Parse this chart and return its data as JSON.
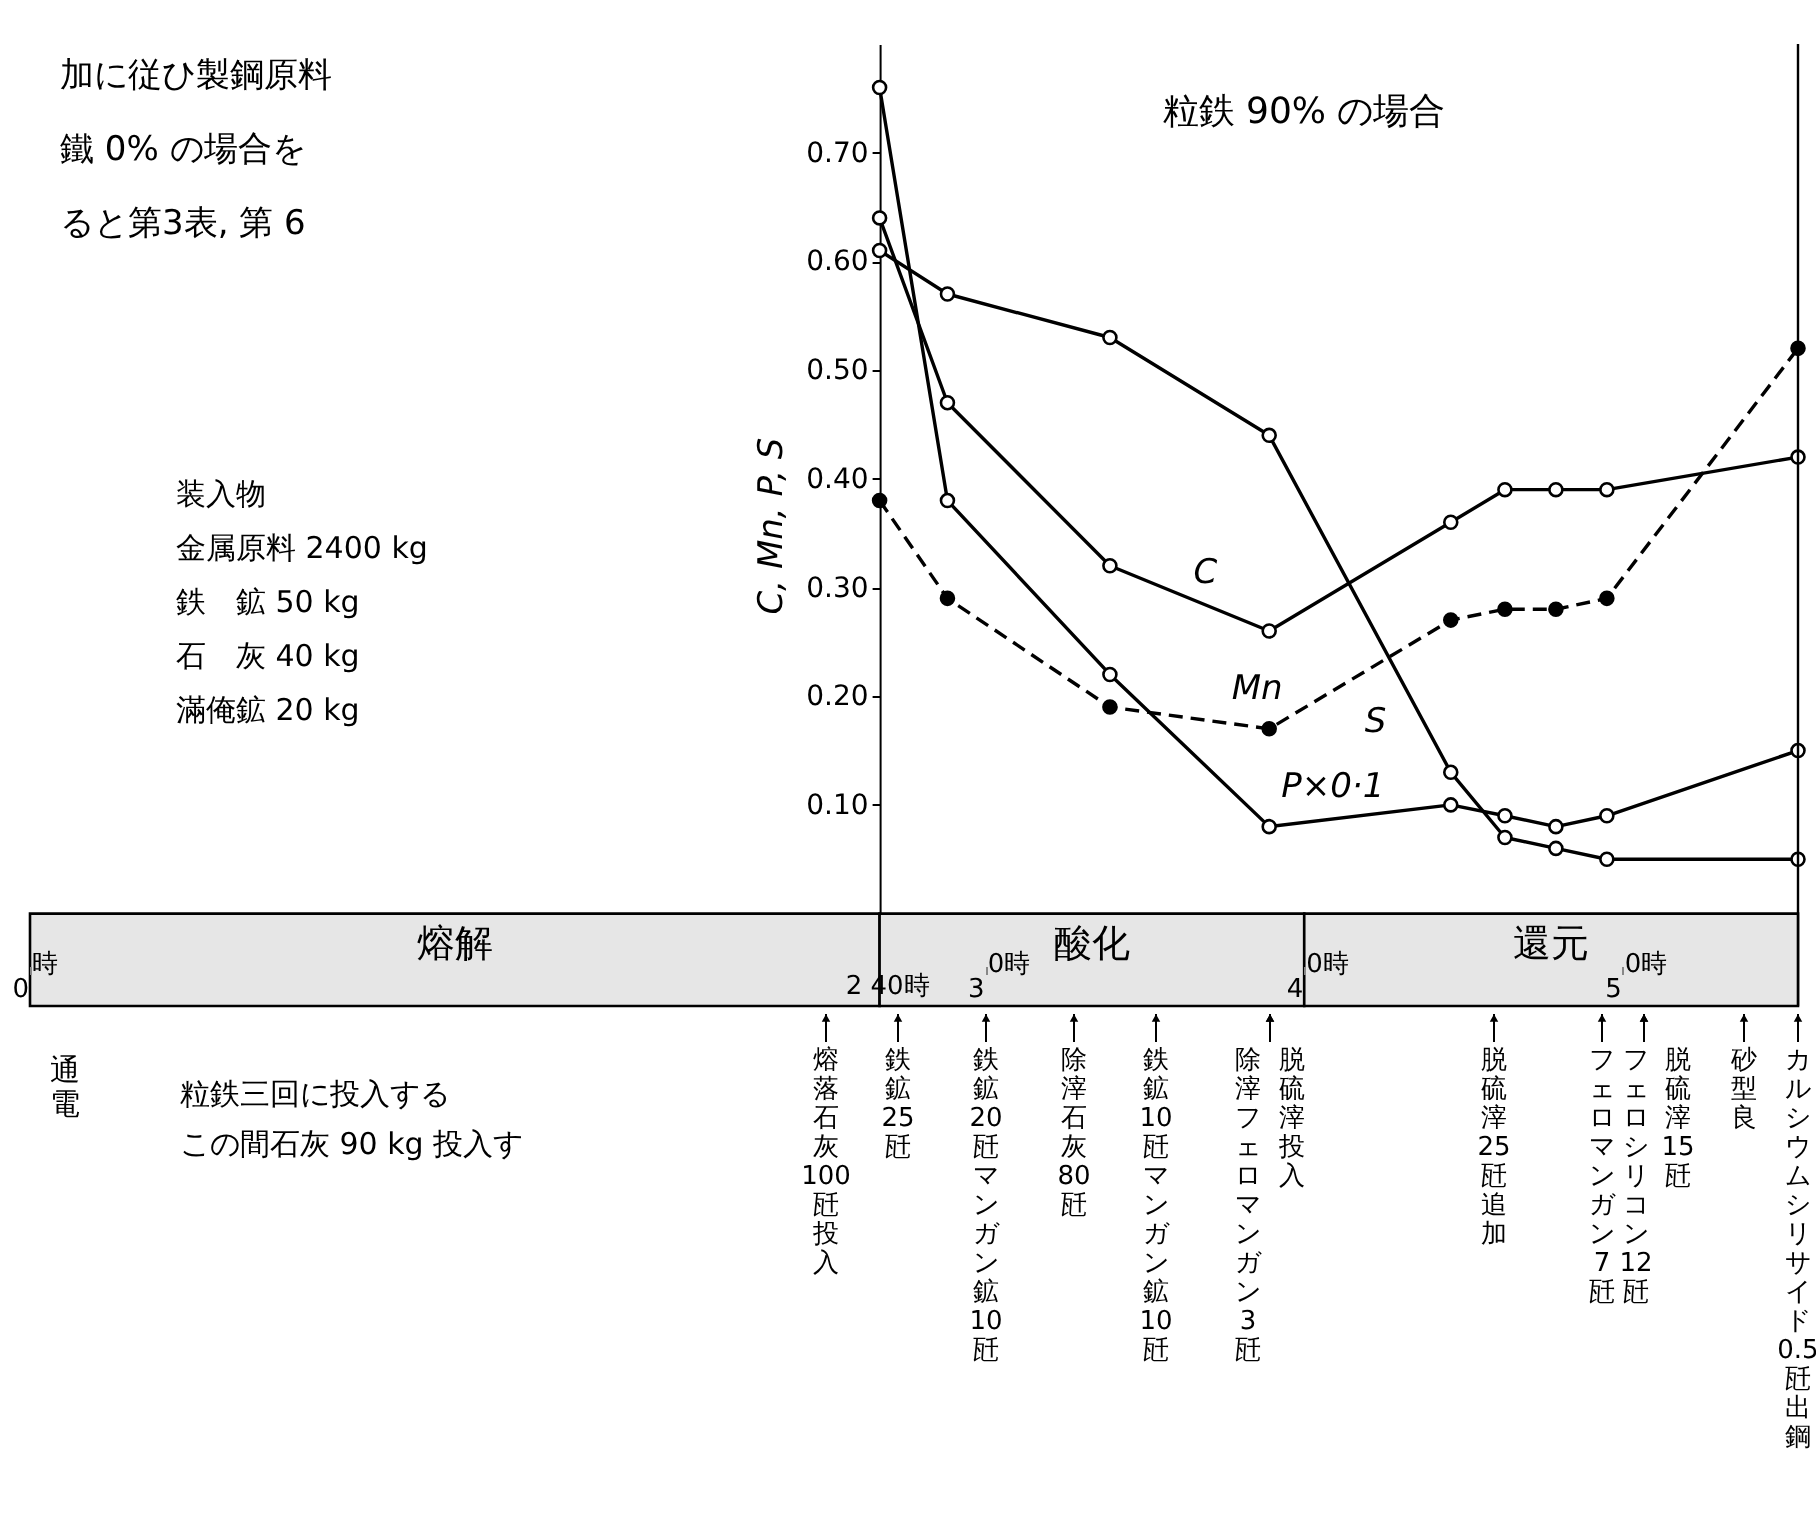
{
  "chart_data": {
    "type": "line",
    "title": "粒鉄 90% の場合",
    "ylabel": "C, Mn, P, S",
    "xlim": [
      0,
      5.55
    ],
    "xticks": [
      0,
      3,
      4,
      5
    ],
    "ylim": [
      -0.085,
      0.8
    ],
    "yticks": [
      {
        "value": 0.1,
        "label": "0.10"
      },
      {
        "value": 0.2,
        "label": "0.20"
      },
      {
        "value": 0.3,
        "label": "0.30"
      },
      {
        "value": 0.4,
        "label": "0.40"
      },
      {
        "value": 0.5,
        "label": "0.50"
      },
      {
        "value": 0.6,
        "label": "0.60"
      },
      {
        "value": 0.7,
        "label": "0.70"
      }
    ],
    "x": [
      2.667,
      2.88,
      3.39,
      3.89,
      4.46,
      4.63,
      4.79,
      4.95,
      5.55
    ],
    "series": [
      {
        "name": "C",
        "color": "#000000",
        "line_style": "solid",
        "values": [
          0.64,
          0.47,
          0.32,
          0.26,
          0.36,
          0.39,
          0.39,
          0.39,
          0.42
        ]
      },
      {
        "name": "Mn",
        "color": "#000000",
        "line_style": "dashed",
        "values": [
          0.38,
          0.29,
          0.19,
          0.17,
          0.27,
          0.28,
          0.28,
          0.29,
          0.52
        ]
      },
      {
        "name": "S",
        "color": "#000000",
        "line_style": "solid",
        "values": [
          0.61,
          0.57,
          0.53,
          0.44,
          0.13,
          0.07,
          0.06,
          0.05,
          0.05
        ]
      },
      {
        "name": "P×0·1",
        "color": "#000000",
        "line_style": "solid",
        "values": [
          0.76,
          0.38,
          0.22,
          0.08,
          0.1,
          0.09,
          0.08,
          0.09,
          0.15
        ]
      }
    ],
    "marker": "circle",
    "grid": false,
    "bands": [
      {
        "axis": "x",
        "from": 0,
        "to": 2.667,
        "label": "熔解",
        "color": "#e6e6e6"
      },
      {
        "axis": "x",
        "from": 2.667,
        "to": 4,
        "label": "酸化",
        "color": "#e6e6e6"
      },
      {
        "axis": "x",
        "from": 4,
        "to": 5.55,
        "label": "還元",
        "color": "#e6e6e6"
      }
    ],
    "annotations": [
      "加に従ひ製鋼原料",
      "鐵 0% の場合を",
      "ると第3表, 第 6",
      "装入物",
      "金属原料 2400 kg",
      "鉄　鉱 50 kg",
      "石　灰 40 kg",
      "滿俺鉱 20 kg",
      "通電",
      "粒鉄三回に投入する",
      "この間石灰 90 kg 投入す",
      "時",
      "2 40時",
      "0時",
      "0時",
      "0時",
      "熔落石灰100瓩投入",
      "鉄鉱25瓩",
      "鉄鉱20瓩マンガン鉱10瓩",
      "除滓石灰80瓩",
      "鉄鉱10瓩マンガン鉱10瓩",
      "除滓フェロマンガン3瓩",
      "脱硫滓投入",
      "脱硫滓25瓩追加",
      "フェロマンガン7瓩",
      "フェロシリコン12瓩",
      "脱硫滓15瓩",
      "砂型良",
      "カルシウムシリサイド0.5瓩出鋼"
    ]
  }
}
